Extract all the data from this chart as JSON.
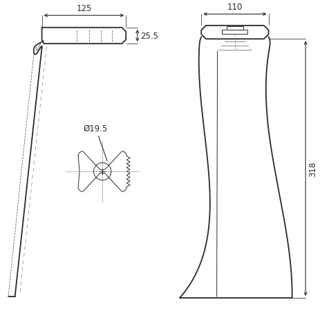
{
  "background_color": "#ffffff",
  "line_color": "#2a2a2a",
  "dim_color": "#2a2a2a",
  "fig_width": 4.64,
  "fig_height": 4.64,
  "dpi": 100,
  "dim_125": "125",
  "dim_25_5": "25.5",
  "dim_110": "110",
  "dim_318": "318",
  "dim_hole": "Ø19.5",
  "lw_main": 1.3,
  "lw_thin": 0.7,
  "lw_dim": 0.8
}
